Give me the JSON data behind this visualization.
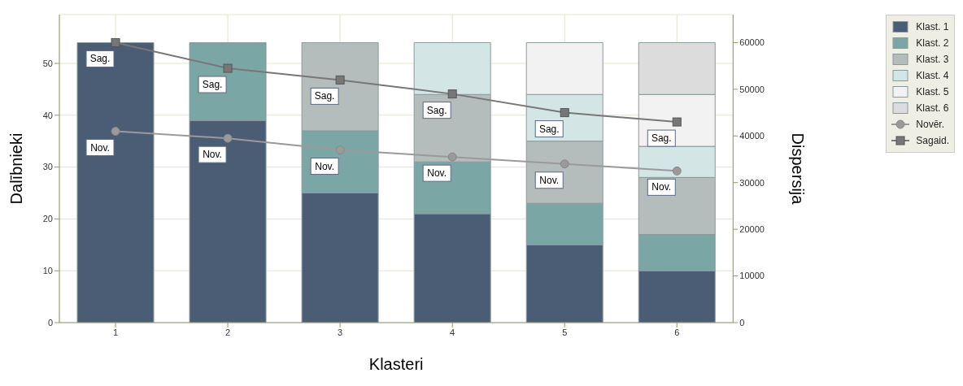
{
  "chart_data": {
    "type": "bar",
    "stacked": true,
    "xlabel": "Klasteri",
    "ylabel": "Dalībnieki",
    "y2label": "Dispersija",
    "categories": [
      "1",
      "2",
      "3",
      "4",
      "5",
      "6"
    ],
    "series": [
      {
        "name": "Klast. 1",
        "color": "#4a5d75",
        "values": [
          54,
          39,
          25,
          21,
          15,
          10
        ]
      },
      {
        "name": "Klast. 2",
        "color": "#7aa7a5",
        "values": [
          null,
          15,
          12,
          10,
          8,
          7
        ]
      },
      {
        "name": "Klast. 3",
        "color": "#b4bcbc",
        "values": [
          null,
          null,
          17,
          13,
          12,
          11
        ]
      },
      {
        "name": "Klast. 4",
        "color": "#d3e5e4",
        "values": [
          null,
          null,
          null,
          10,
          9,
          6
        ]
      },
      {
        "name": "Klast. 5",
        "color": "#f2f2f2",
        "values": [
          null,
          null,
          null,
          null,
          10,
          10
        ]
      },
      {
        "name": "Klast. 6",
        "color": "#dcdcdc",
        "values": [
          null,
          null,
          null,
          null,
          null,
          10
        ]
      },
      {
        "name": "Novēr.",
        "type": "line",
        "axis": "y2",
        "marker": "circle",
        "color": "#9a9a9a",
        "values": [
          41000,
          39500,
          37000,
          35500,
          34000,
          32500
        ],
        "value_labels": [
          "Nov.",
          "Nov.",
          "Nov.",
          "Nov.",
          "Nov.",
          "Nov."
        ]
      },
      {
        "name": "Sagaid.",
        "type": "line",
        "axis": "y2",
        "marker": "square",
        "color": "#777777",
        "values": [
          60000,
          54500,
          52000,
          49000,
          45000,
          43000
        ],
        "value_labels": [
          "Sag.",
          "Sag.",
          "Sag.",
          "Sag.",
          "Sag.",
          "Sag."
        ]
      }
    ],
    "ylim": [
      0,
      59.4
    ],
    "yticks": [
      0,
      10,
      20,
      30,
      40,
      50
    ],
    "y2lim": [
      0,
      66000
    ],
    "y2ticks": [
      0,
      10000,
      20000,
      30000,
      40000,
      50000,
      60000
    ],
    "grid": true,
    "legend": "top right"
  }
}
